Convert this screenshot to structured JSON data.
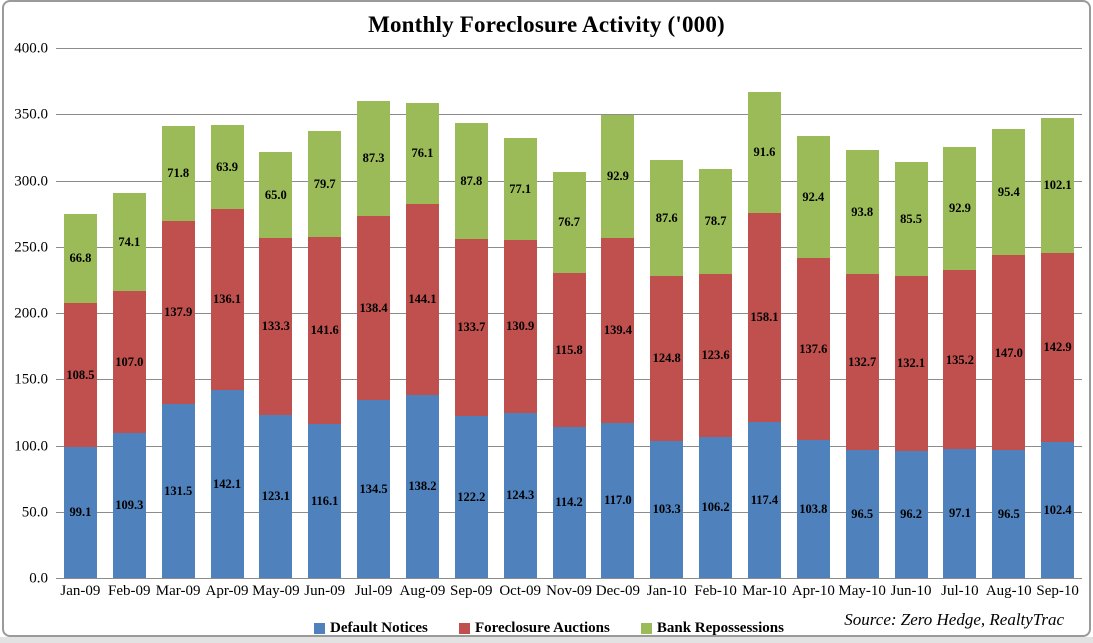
{
  "title": "Monthly Foreclosure Activity ('000)",
  "source_note": "Source: Zero Hedge, RealtyTrac",
  "colors": {
    "default_notices": "#4F81BD",
    "foreclosure_auctions": "#C0504D",
    "bank_repossessions": "#9BBB59",
    "gridline": "#8C8C8C",
    "frame_border": "#9A9A9A"
  },
  "chart_data": {
    "type": "bar",
    "stacked": true,
    "title": "Monthly Foreclosure Activity ('000)",
    "xlabel": "",
    "ylabel": "",
    "ylim": [
      0,
      400
    ],
    "ytick_step": 50,
    "ytick_labels": [
      "0.0",
      "50.0",
      "100.0",
      "150.0",
      "200.0",
      "250.0",
      "300.0",
      "350.0",
      "400.0"
    ],
    "grid": true,
    "legend_position": "bottom",
    "data_labels": "one-decimal, centered in each segment",
    "categories": [
      "Jan-09",
      "Feb-09",
      "Mar-09",
      "Apr-09",
      "May-09",
      "Jun-09",
      "Jul-09",
      "Aug-09",
      "Sep-09",
      "Oct-09",
      "Nov-09",
      "Dec-09",
      "Jan-10",
      "Feb-10",
      "Mar-10",
      "Apr-10",
      "May-10",
      "Jun-10",
      "Jul-10",
      "Aug-10",
      "Sep-10"
    ],
    "series": [
      {
        "name": "Default Notices",
        "color": "#4F81BD",
        "values": [
          99.1,
          109.3,
          131.5,
          142.1,
          123.1,
          116.1,
          134.5,
          138.2,
          122.2,
          124.3,
          114.2,
          117.0,
          103.3,
          106.2,
          117.4,
          103.8,
          96.5,
          96.2,
          97.1,
          96.5,
          102.4
        ]
      },
      {
        "name": "Foreclosure Auctions",
        "color": "#C0504D",
        "values": [
          108.5,
          107.0,
          137.9,
          136.1,
          133.3,
          141.6,
          138.4,
          144.1,
          133.7,
          130.9,
          115.8,
          139.4,
          124.8,
          123.6,
          158.1,
          137.6,
          132.7,
          132.1,
          135.2,
          147.0,
          142.9
        ]
      },
      {
        "name": "Bank Repossessions",
        "color": "#9BBB59",
        "values": [
          66.8,
          74.1,
          71.8,
          63.9,
          65.0,
          79.7,
          87.3,
          76.1,
          87.8,
          77.1,
          76.7,
          92.9,
          87.6,
          78.7,
          91.6,
          92.4,
          93.8,
          85.5,
          92.9,
          95.4,
          102.1
        ]
      }
    ]
  }
}
